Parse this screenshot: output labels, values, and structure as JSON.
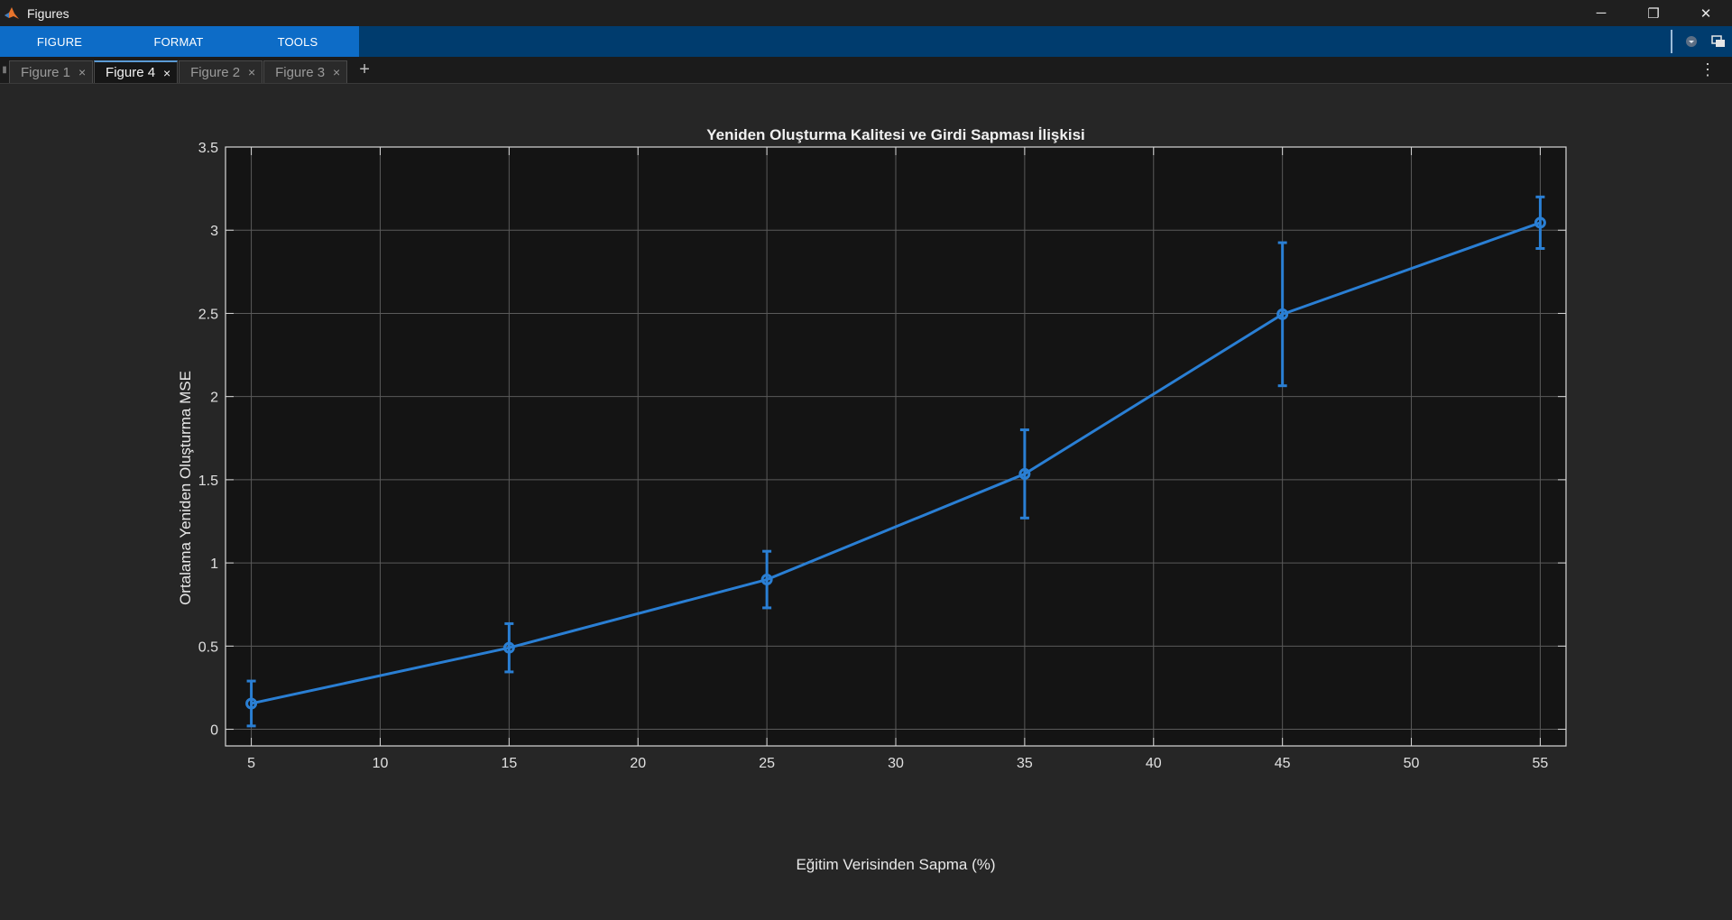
{
  "window": {
    "title": "Figures",
    "controls": {
      "minimize": "─",
      "restore": "❐",
      "close": "✕"
    }
  },
  "ribbon": {
    "tabs": [
      {
        "label": "FIGURE"
      },
      {
        "label": "FORMAT"
      },
      {
        "label": "TOOLS"
      }
    ],
    "icons": [
      "collapse-ribbon-icon",
      "undock-icon"
    ]
  },
  "document_tabs": {
    "tabs": [
      {
        "label": "Figure 1",
        "active": false
      },
      {
        "label": "Figure 4",
        "active": true
      },
      {
        "label": "Figure 2",
        "active": false
      },
      {
        "label": "Figure 3",
        "active": false
      }
    ],
    "add_symbol": "+",
    "menu_symbol": "⋮",
    "close_symbol": "×"
  },
  "colors": {
    "series": "#2a7fd4",
    "axes_bg": "#141414",
    "grid": "#5a5a5a",
    "axis_line": "#d8d8d8"
  },
  "chart_data": {
    "type": "line",
    "title": "Yeniden Oluşturma Kalitesi ve Girdi Sapması İlişkisi",
    "xlabel": "Eğitim Verisinden Sapma (%)",
    "ylabel": "Ortalama Yeniden Oluşturma MSE",
    "xlim": [
      4,
      56
    ],
    "ylim": [
      -0.1,
      3.5
    ],
    "xticks": [
      5,
      10,
      15,
      20,
      25,
      30,
      35,
      40,
      45,
      50,
      55
    ],
    "yticks": [
      0,
      0.5,
      1,
      1.5,
      2,
      2.5,
      3,
      3.5
    ],
    "xtick_labels": [
      "5",
      "10",
      "15",
      "20",
      "25",
      "30",
      "35",
      "40",
      "45",
      "50",
      "55"
    ],
    "ytick_labels": [
      "0",
      "0.5",
      "1",
      "1.5",
      "2",
      "2.5",
      "3",
      "3.5"
    ],
    "grid": true,
    "series": [
      {
        "x": [
          5,
          15,
          25,
          35,
          45,
          55
        ],
        "y": [
          0.155,
          0.49,
          0.9,
          1.535,
          2.495,
          3.045
        ],
        "err_low": [
          0.135,
          0.145,
          0.17,
          0.265,
          0.43,
          0.155
        ],
        "err_high": [
          0.135,
          0.145,
          0.17,
          0.265,
          0.43,
          0.155
        ]
      }
    ]
  }
}
